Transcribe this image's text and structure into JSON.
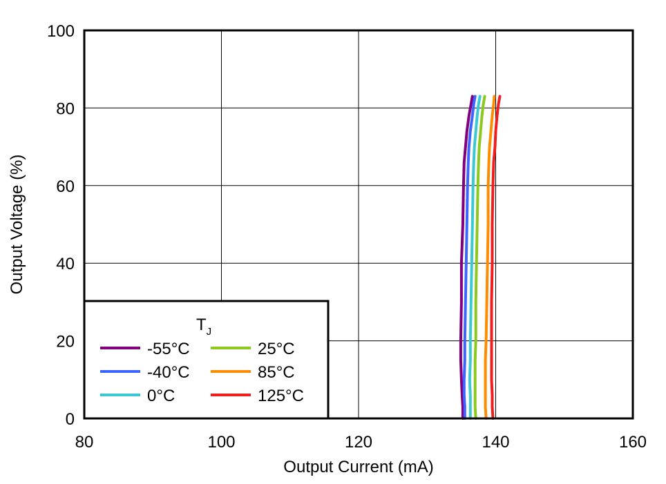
{
  "chart_data": {
    "type": "line",
    "title": "",
    "xlabel": "Output Current (mA)",
    "ylabel": "Output Voltage (%)",
    "xlim": [
      80,
      160
    ],
    "ylim": [
      0,
      100
    ],
    "x_ticks": [
      80,
      100,
      120,
      140,
      160
    ],
    "y_ticks": [
      0,
      20,
      40,
      60,
      80,
      100
    ],
    "x_tick_labels": [
      "80",
      "100",
      "120",
      "140",
      "160"
    ],
    "y_tick_labels": [
      "0",
      "20",
      "40",
      "60",
      "80",
      "100"
    ],
    "grid": true,
    "legend": {
      "title_main": "T",
      "title_sub": "J",
      "placement": "bottom-left"
    },
    "series": [
      {
        "name": "-55°C",
        "color": "#800080",
        "points": [
          [
            135.2,
            0
          ],
          [
            135.2,
            3
          ],
          [
            135.1,
            6
          ],
          [
            135.0,
            10
          ],
          [
            134.9,
            15
          ],
          [
            134.9,
            20
          ],
          [
            135.0,
            30
          ],
          [
            135.0,
            40
          ],
          [
            135.2,
            50
          ],
          [
            135.3,
            60
          ],
          [
            135.4,
            66
          ],
          [
            135.6,
            70
          ],
          [
            135.8,
            74
          ],
          [
            136.1,
            78
          ],
          [
            136.4,
            81
          ],
          [
            136.6,
            83
          ]
        ]
      },
      {
        "name": "-40°C",
        "color": "#3c64ff",
        "points": [
          [
            135.5,
            0
          ],
          [
            135.5,
            3
          ],
          [
            135.4,
            6
          ],
          [
            135.4,
            10
          ],
          [
            135.5,
            15
          ],
          [
            135.5,
            20
          ],
          [
            135.6,
            30
          ],
          [
            135.7,
            40
          ],
          [
            135.8,
            50
          ],
          [
            135.9,
            60
          ],
          [
            136.0,
            66
          ],
          [
            136.1,
            70
          ],
          [
            136.3,
            74
          ],
          [
            136.6,
            78
          ],
          [
            136.8,
            81
          ],
          [
            137.0,
            83
          ]
        ]
      },
      {
        "name": "0°C",
        "color": "#3cc8d2",
        "points": [
          [
            136.3,
            0
          ],
          [
            136.3,
            3
          ],
          [
            136.3,
            6
          ],
          [
            136.2,
            10
          ],
          [
            136.3,
            15
          ],
          [
            136.3,
            20
          ],
          [
            136.4,
            30
          ],
          [
            136.5,
            40
          ],
          [
            136.6,
            50
          ],
          [
            136.7,
            60
          ],
          [
            136.8,
            66
          ],
          [
            136.9,
            70
          ],
          [
            137.1,
            74
          ],
          [
            137.3,
            78
          ],
          [
            137.5,
            81
          ],
          [
            137.7,
            83
          ]
        ]
      },
      {
        "name": "25°C",
        "color": "#8cc81e",
        "points": [
          [
            137.1,
            0
          ],
          [
            137.0,
            3
          ],
          [
            137.0,
            6
          ],
          [
            137.0,
            10
          ],
          [
            137.0,
            15
          ],
          [
            137.1,
            20
          ],
          [
            137.1,
            30
          ],
          [
            137.2,
            40
          ],
          [
            137.3,
            50
          ],
          [
            137.4,
            60
          ],
          [
            137.5,
            66
          ],
          [
            137.6,
            70
          ],
          [
            137.8,
            74
          ],
          [
            138.0,
            78
          ],
          [
            138.2,
            81
          ],
          [
            138.4,
            83
          ]
        ]
      },
      {
        "name": "85°C",
        "color": "#ff8c00",
        "points": [
          [
            138.6,
            0
          ],
          [
            138.5,
            3
          ],
          [
            138.5,
            6
          ],
          [
            138.5,
            10
          ],
          [
            138.5,
            15
          ],
          [
            138.6,
            20
          ],
          [
            138.7,
            30
          ],
          [
            138.8,
            40
          ],
          [
            138.9,
            50
          ],
          [
            138.9,
            60
          ],
          [
            139.0,
            66
          ],
          [
            139.1,
            70
          ],
          [
            139.3,
            74
          ],
          [
            139.5,
            78
          ],
          [
            139.7,
            81
          ],
          [
            139.8,
            83
          ]
        ]
      },
      {
        "name": "125°C",
        "color": "#f01e1e",
        "points": [
          [
            139.6,
            0
          ],
          [
            139.5,
            3
          ],
          [
            139.5,
            6
          ],
          [
            139.4,
            10
          ],
          [
            139.4,
            15
          ],
          [
            139.4,
            20
          ],
          [
            139.4,
            30
          ],
          [
            139.5,
            40
          ],
          [
            139.5,
            50
          ],
          [
            139.6,
            60
          ],
          [
            139.7,
            66
          ],
          [
            139.9,
            70
          ],
          [
            140.0,
            74
          ],
          [
            140.2,
            78
          ],
          [
            140.4,
            81
          ],
          [
            140.6,
            83
          ]
        ]
      }
    ]
  }
}
